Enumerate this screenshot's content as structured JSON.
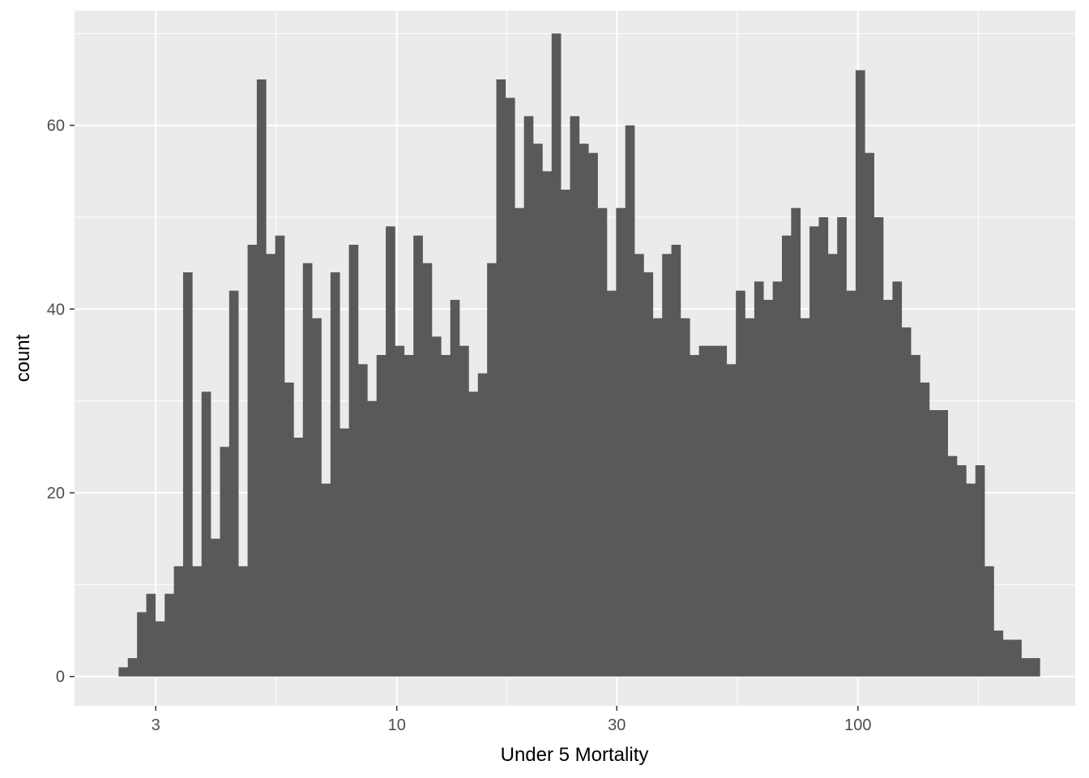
{
  "chart_data": {
    "type": "bar",
    "subtype": "histogram",
    "xscale": "log10",
    "xlabel": "Under 5 Mortality",
    "ylabel": "count",
    "ylim": [
      -3.2,
      72.5
    ],
    "yticks": [
      0,
      20,
      40,
      60
    ],
    "xticks": [
      3,
      10,
      30,
      100
    ],
    "xlim": [
      2.0,
      296
    ],
    "grid": true,
    "colors": {
      "panel": "#EBEBEB",
      "grid": "#FFFFFF",
      "bar": "#595959",
      "tick_text": "#4D4D4D"
    },
    "bins_log10_start": 0.3966,
    "bins_log10_width": 0.01998,
    "counts": [
      1,
      2,
      7,
      9,
      6,
      9,
      12,
      44,
      12,
      31,
      15,
      25,
      42,
      12,
      47,
      65,
      46,
      48,
      32,
      26,
      45,
      39,
      21,
      44,
      27,
      47,
      34,
      30,
      35,
      49,
      36,
      35,
      48,
      45,
      37,
      35,
      41,
      36,
      31,
      33,
      45,
      65,
      63,
      51,
      61,
      58,
      55,
      70,
      53,
      61,
      58,
      57,
      51,
      42,
      51,
      60,
      46,
      44,
      39,
      46,
      47,
      39,
      35,
      36,
      36,
      36,
      34,
      42,
      39,
      43,
      41,
      43,
      48,
      51,
      39,
      49,
      50,
      46,
      50,
      42,
      66,
      57,
      50,
      41,
      43,
      38,
      35,
      32,
      29,
      29,
      24,
      23,
      21,
      23,
      12,
      5,
      4,
      4,
      2,
      2
    ]
  }
}
